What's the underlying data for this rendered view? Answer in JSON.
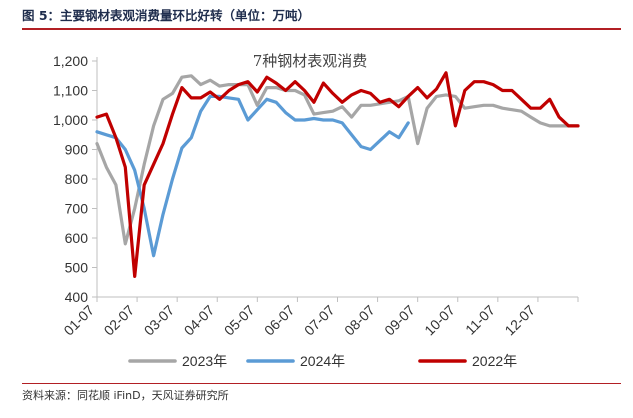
{
  "figure_caption": "图 5：主要钢材表观消费量环比好转（单位：万吨）",
  "source_note": "资料来源：同花顺 iFinD，天风证券研究所",
  "chart_data": {
    "type": "line",
    "title": "7种钢材表观消费",
    "xlabel": "",
    "ylabel": "",
    "ylim": [
      400,
      1200
    ],
    "yticks": [
      400,
      500,
      600,
      700,
      800,
      900,
      1000,
      1100,
      1200
    ],
    "y_tick_labels": [
      "400",
      "500",
      "600",
      "700",
      "800",
      "900",
      "1,000",
      "1,100",
      "1,200"
    ],
    "x_tick_labels": [
      "01-07",
      "02-07",
      "03-07",
      "04-07",
      "05-07",
      "06-07",
      "07-07",
      "08-07",
      "09-07",
      "10-07",
      "11-07",
      "12-07"
    ],
    "grid": false,
    "legend_position": "bottom",
    "x_range_weeks": [
      1,
      52
    ],
    "series": [
      {
        "name": "2023年",
        "color": "#a6a6a6",
        "x": [
          1,
          2,
          3,
          4,
          5,
          6,
          7,
          8,
          9,
          10,
          11,
          12,
          13,
          14,
          15,
          16,
          17,
          18,
          19,
          20,
          21,
          22,
          23,
          24,
          25,
          26,
          27,
          28,
          29,
          30,
          31,
          32,
          33,
          34,
          35,
          36,
          37,
          38,
          39,
          40,
          41,
          42,
          43,
          44,
          45,
          46,
          47,
          48,
          49,
          50,
          51,
          52
        ],
        "values": [
          920,
          840,
          780,
          580,
          700,
          850,
          980,
          1070,
          1090,
          1145,
          1150,
          1120,
          1135,
          1115,
          1120,
          1120,
          1120,
          1050,
          1110,
          1110,
          1100,
          1100,
          1085,
          1020,
          1025,
          1030,
          1045,
          1010,
          1050,
          1050,
          1055,
          1060,
          1065,
          1080,
          920,
          1040,
          1080,
          1085,
          1080,
          1040,
          1045,
          1050,
          1050,
          1040,
          1035,
          1030,
          1010,
          990,
          980,
          980,
          980,
          980
        ]
      },
      {
        "name": "2024年",
        "color": "#5b9bd5",
        "x": [
          1,
          2,
          3,
          4,
          5,
          6,
          7,
          8,
          9,
          10,
          11,
          12,
          13,
          14,
          15,
          16,
          17,
          18,
          19,
          20,
          21,
          22,
          23,
          24,
          25,
          26,
          27,
          28,
          29,
          30,
          31,
          32,
          33,
          34
        ],
        "values": [
          960,
          950,
          940,
          900,
          830,
          700,
          540,
          680,
          800,
          905,
          940,
          1030,
          1080,
          1080,
          1075,
          1070,
          1000,
          1035,
          1070,
          1060,
          1025,
          1000,
          1000,
          1005,
          1000,
          1000,
          990,
          950,
          910,
          900,
          930,
          960,
          940,
          990
        ]
      },
      {
        "name": "2022年",
        "color": "#c00000",
        "x": [
          1,
          2,
          3,
          4,
          5,
          6,
          7,
          8,
          9,
          10,
          11,
          12,
          13,
          14,
          15,
          16,
          17,
          18,
          19,
          20,
          21,
          22,
          23,
          24,
          25,
          26,
          27,
          28,
          29,
          30,
          31,
          32,
          33,
          34,
          35,
          36,
          37,
          38,
          39,
          40,
          41,
          42,
          43,
          44,
          45,
          46,
          47,
          48,
          49,
          50,
          51,
          52
        ],
        "values": [
          1010,
          1020,
          940,
          840,
          470,
          780,
          850,
          920,
          1020,
          1110,
          1075,
          1075,
          1095,
          1070,
          1100,
          1120,
          1130,
          1095,
          1145,
          1125,
          1100,
          1130,
          1100,
          1060,
          1125,
          1090,
          1060,
          1085,
          1100,
          1090,
          1060,
          1070,
          1045,
          1080,
          1110,
          1075,
          1105,
          1160,
          980,
          1100,
          1130,
          1130,
          1120,
          1100,
          1100,
          1070,
          1040,
          1040,
          1070,
          1010,
          980,
          980
        ]
      }
    ]
  }
}
